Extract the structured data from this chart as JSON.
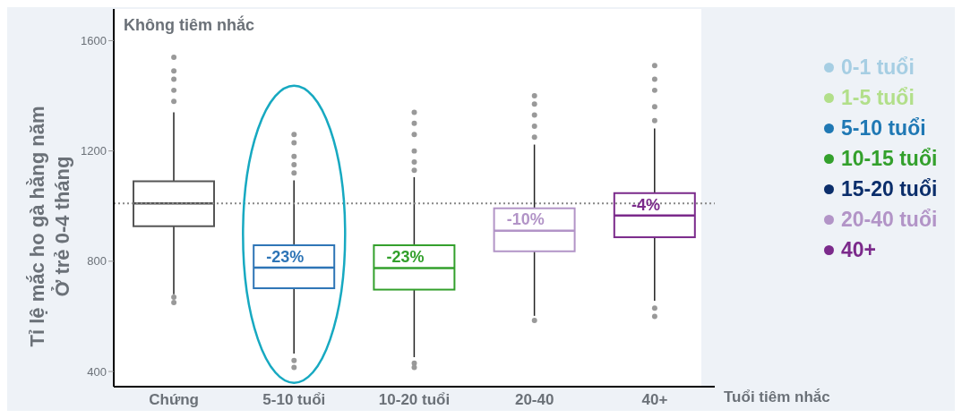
{
  "chart_data": {
    "type": "box",
    "title": "Không tiêm nhắc",
    "xlabel": "Tuổi tiêm nhắc",
    "ylabel": "Tỉ lệ mắc ho gà hằng năm\nỞ trẻ 0-4 tháng",
    "categories": [
      "Chứng",
      "5-10 tuổi",
      "10-20 tuổi",
      "20-40",
      "40+"
    ],
    "colors": [
      "#555555",
      "#2e75b6",
      "#33a02c",
      "#b294c7",
      "#7b2a8b"
    ],
    "boxes": [
      {
        "low": 680,
        "q1": 927,
        "median": 1010,
        "q3": 1090,
        "high": 1340,
        "outliers": [
          1380,
          1420,
          1460,
          1490,
          1540,
          670,
          650
        ]
      },
      {
        "low": 465,
        "q1": 702,
        "median": 777,
        "q3": 858,
        "high": 1093,
        "outliers": [
          1120,
          1150,
          1180,
          1230,
          1260,
          440,
          415
        ]
      },
      {
        "low": 452,
        "q1": 697,
        "median": 775,
        "q3": 858,
        "high": 1105,
        "outliers": [
          1130,
          1160,
          1200,
          1260,
          1300,
          1340,
          430,
          415
        ]
      },
      {
        "low": 602,
        "q1": 836,
        "median": 911,
        "q3": 992,
        "high": 1223,
        "outliers": [
          1250,
          1290,
          1330,
          1370,
          1400,
          585
        ]
      },
      {
        "low": 657,
        "q1": 887,
        "median": 966,
        "q3": 1047,
        "high": 1282,
        "outliers": [
          1310,
          1360,
          1420,
          1460,
          1510,
          630,
          600
        ]
      }
    ],
    "annotations": [
      "-23%",
      "-23%",
      "-10%",
      "-4%"
    ],
    "ref_lines": [
      {
        "axis": "y",
        "value": 1010,
        "color": "#888888",
        "line_style": "dotted"
      }
    ],
    "series": [
      {
        "name": "0-1 tuổi",
        "color": "#a6cee3",
        "values": [
          null,
          null,
          null,
          null,
          null
        ]
      },
      {
        "name": "1-5 tuổi",
        "color": "#b2df8a",
        "values": [
          null,
          null,
          null,
          null,
          null
        ]
      },
      {
        "name": "5-10 tuổi",
        "color": "#1f78b4",
        "values": [
          null,
          null,
          null,
          null,
          null
        ]
      },
      {
        "name": "10-15 tuổi",
        "color": "#33a02c",
        "values": [
          null,
          null,
          null,
          null,
          null
        ]
      },
      {
        "name": "15-20 tuổi",
        "color": "#0b2e6b",
        "values": [
          null,
          null,
          null,
          null,
          null
        ]
      },
      {
        "name": "20-40 tuổi",
        "color": "#b294c7",
        "values": [
          null,
          null,
          null,
          null,
          null
        ]
      },
      {
        "name": "40+",
        "color": "#7b2a8b",
        "values": [
          null,
          null,
          null,
          null,
          null
        ]
      }
    ],
    "legend": "right",
    "ylim": [
      345,
      1715
    ],
    "yticks": [
      400,
      800,
      1200,
      1600
    ]
  }
}
